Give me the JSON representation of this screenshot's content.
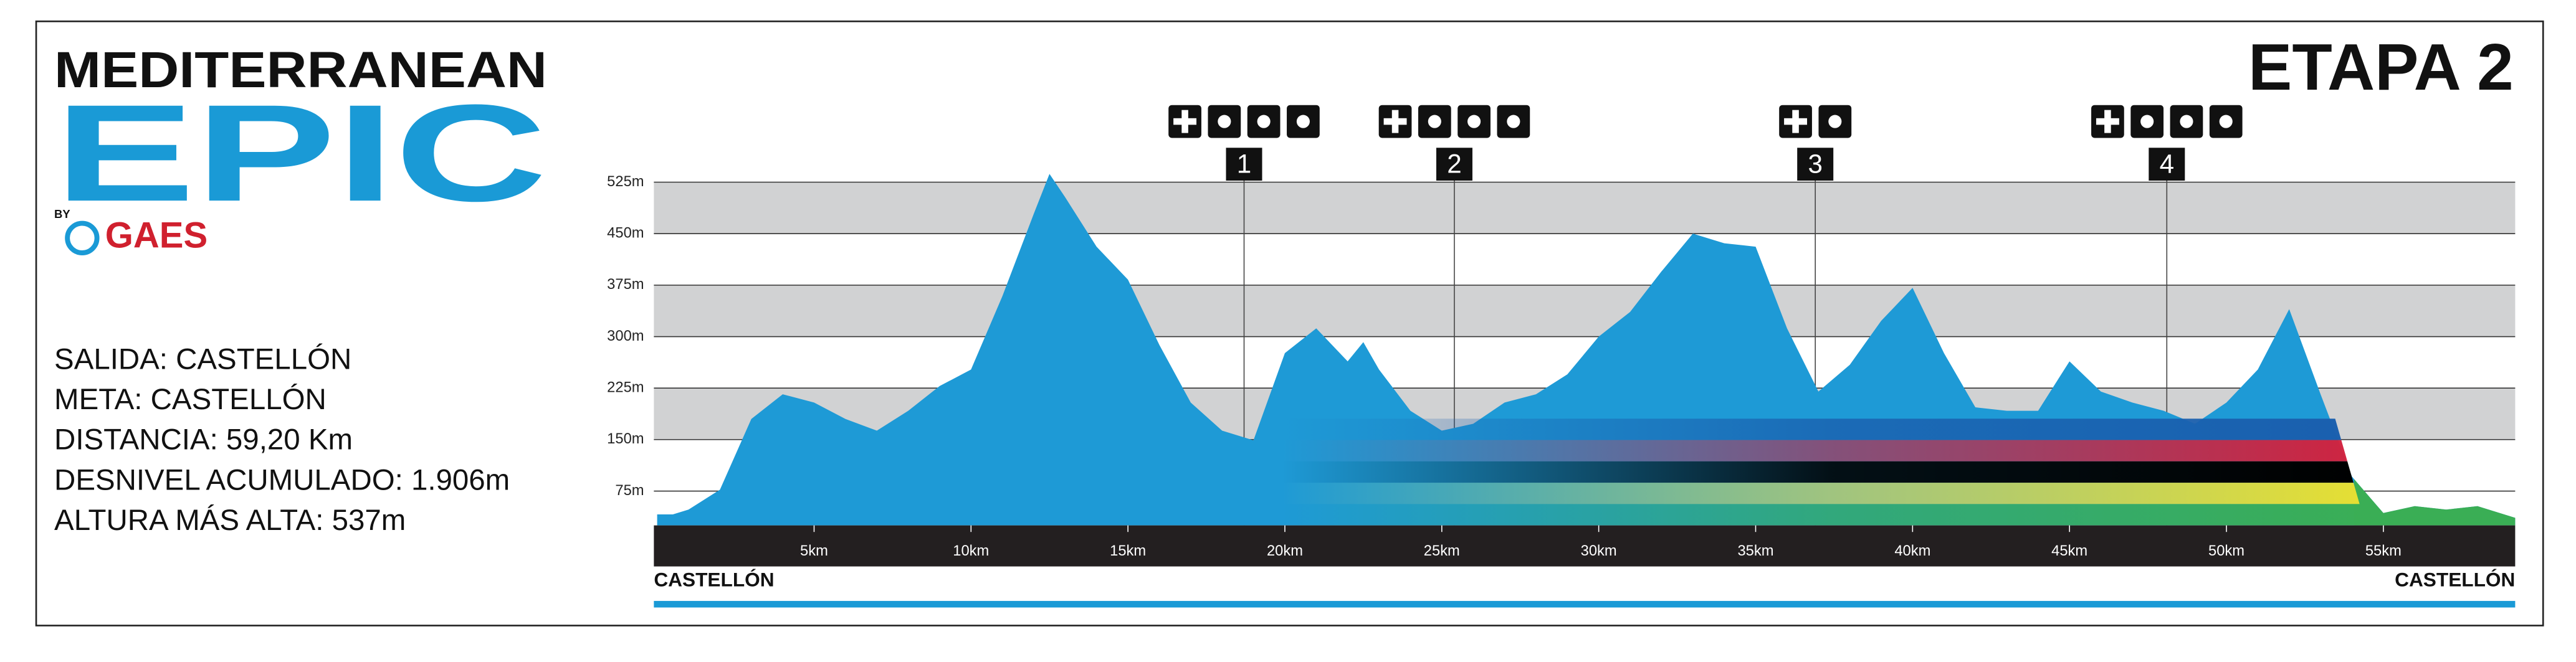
{
  "chart_data": {
    "type": "area",
    "title": "ETAPA 2",
    "brand": {
      "line1": "MEDITERRANEAN",
      "line2": "EPIC",
      "by": "BY",
      "sponsor": "GAES"
    },
    "info": [
      "SALIDA: CASTELLÓN",
      "META: CASTELLÓN",
      "DISTANCIA: 59,20 Km",
      "DESNIVEL ACUMULADO: 1.906m",
      "ALTURA MÁS ALTA: 537m"
    ],
    "start_label": "CASTELLÓN",
    "end_label": "CASTELLÓN",
    "color": "#1e9ad6",
    "x": [
      0,
      0.5,
      1,
      2,
      3,
      4,
      5,
      6,
      7,
      8,
      9,
      10,
      11,
      12,
      12.5,
      13,
      14,
      15,
      16,
      17,
      18,
      19,
      20,
      21,
      22,
      22.5,
      23,
      24,
      25,
      26,
      27,
      28,
      29,
      30,
      31,
      32,
      33,
      34,
      35,
      36,
      37,
      38,
      39,
      40,
      41,
      42,
      43,
      44,
      45,
      46,
      47,
      48,
      49,
      50,
      51,
      52,
      53,
      54,
      55,
      56,
      57,
      58,
      59.2
    ],
    "values": [
      41,
      41,
      48,
      77,
      180,
      216,
      204,
      180,
      163,
      192,
      228,
      252,
      359,
      479,
      537,
      503,
      431,
      383,
      288,
      204,
      163,
      149,
      276,
      312,
      264,
      292,
      252,
      192,
      163,
      173,
      204,
      216,
      245,
      300,
      336,
      395,
      450,
      436,
      431,
      312,
      220,
      259,
      323,
      371,
      276,
      197,
      192,
      192,
      264,
      220,
      204,
      192,
      173,
      204,
      252,
      340,
      216,
      96,
      43,
      53,
      48,
      53,
      36
    ],
    "xlim": [
      0,
      59.2
    ],
    "ylim": [
      25,
      550
    ],
    "xticks": [
      {
        "value": 5,
        "label": "5km"
      },
      {
        "value": 10,
        "label": "10km"
      },
      {
        "value": 15,
        "label": "15km"
      },
      {
        "value": 20,
        "label": "20km"
      },
      {
        "value": 25,
        "label": "25km"
      },
      {
        "value": 30,
        "label": "30km"
      },
      {
        "value": 35,
        "label": "35km"
      },
      {
        "value": 40,
        "label": "40km"
      },
      {
        "value": 45,
        "label": "45km"
      },
      {
        "value": 50,
        "label": "50km"
      },
      {
        "value": 55,
        "label": "55km"
      }
    ],
    "yticks": [
      {
        "value": 75,
        "label": "75m"
      },
      {
        "value": 150,
        "label": "150m"
      },
      {
        "value": 225,
        "label": "225m"
      },
      {
        "value": 300,
        "label": "300m"
      },
      {
        "value": 375,
        "label": "375m"
      },
      {
        "value": 450,
        "label": "450m"
      },
      {
        "value": 525,
        "label": "525m"
      }
    ],
    "grid": true,
    "stations": [
      {
        "km": 18.7,
        "label": "1"
      },
      {
        "km": 25.4,
        "label": "2"
      },
      {
        "km": 36.9,
        "label": "3"
      },
      {
        "km": 48.1,
        "label": "4"
      }
    ]
  }
}
